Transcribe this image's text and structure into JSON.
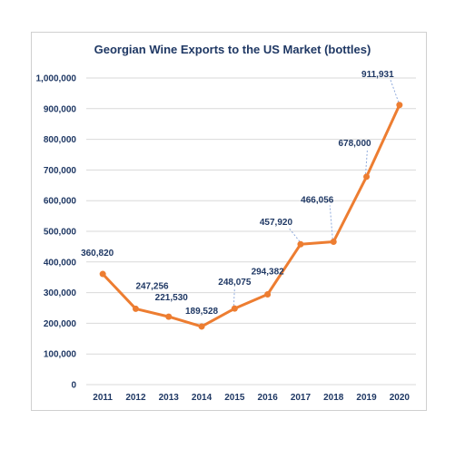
{
  "chart_data": {
    "type": "line",
    "title": "Georgian Wine Exports to the US Market (bottles)",
    "xlabel": "",
    "ylabel": "",
    "categories": [
      "2011",
      "2012",
      "2013",
      "2014",
      "2015",
      "2016",
      "2017",
      "2018",
      "2019",
      "2020"
    ],
    "values": [
      360820,
      247256,
      221530,
      189528,
      248075,
      294382,
      457920,
      466056,
      678000,
      911931
    ],
    "data_labels": [
      "360,820",
      "247,256",
      "221,530",
      "189,528",
      "248,075",
      "294,382",
      "457,920",
      "466,056",
      "678,000",
      "911,931"
    ],
    "ylim": [
      0,
      1000000
    ],
    "yticks": [
      0,
      100000,
      200000,
      300000,
      400000,
      500000,
      600000,
      700000,
      800000,
      900000,
      1000000
    ],
    "ytick_labels": [
      "0",
      "100,000",
      "200,000",
      "300,000",
      "400,000",
      "500,000",
      "600,000",
      "700,000",
      "800,000",
      "900,000",
      "1,000,000"
    ],
    "grid": true,
    "legend": "none",
    "line_color": "#ed7d31",
    "label_color": "#1f3864",
    "gridline_color": "#d9d9d9"
  }
}
